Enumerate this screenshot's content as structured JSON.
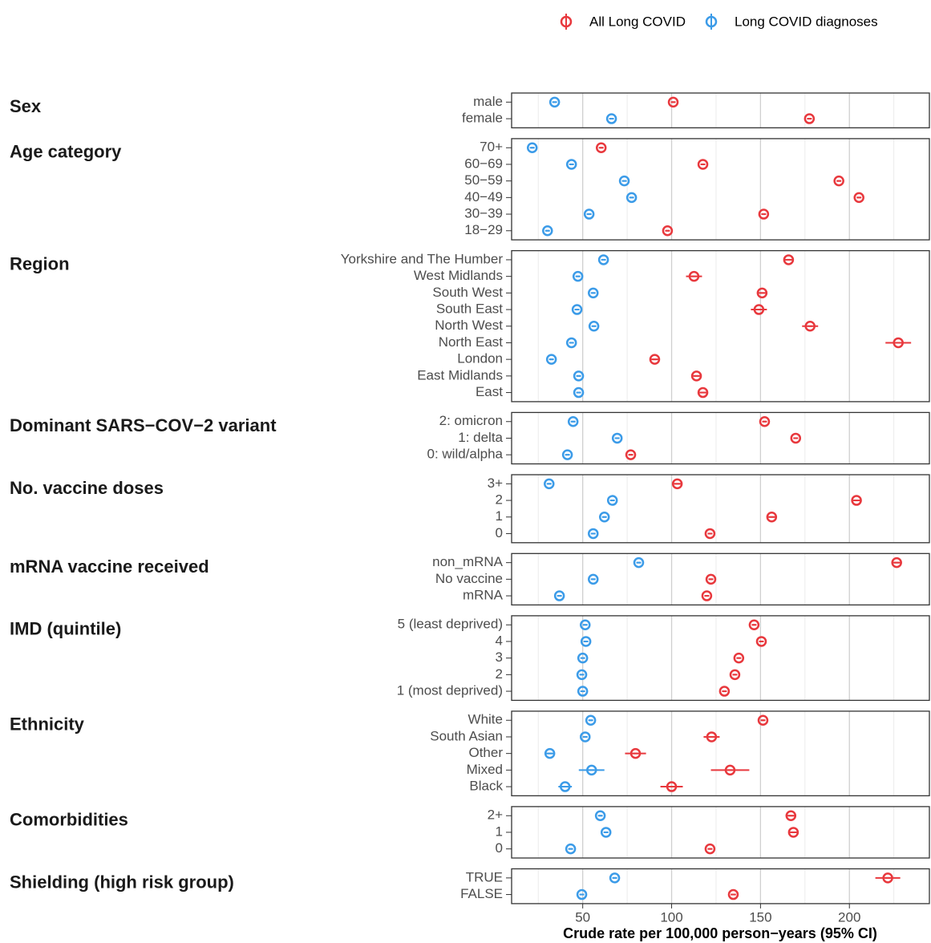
{
  "chart_data": {
    "type": "dotplot",
    "x_label": "Crude rate per 100,000 person−years (95% CI)",
    "xlim": [
      10,
      245
    ],
    "xticks": [
      50,
      100,
      150,
      200
    ],
    "minor_xticks": [
      25,
      75,
      125,
      175,
      225
    ],
    "grid": true,
    "legend_position": "top-right",
    "series": [
      {
        "name": "All Long COVID",
        "color": "#e8383d"
      },
      {
        "name": "Long COVID diagnoses",
        "color": "#3b9be8"
      }
    ],
    "panels": [
      {
        "title": "Sex",
        "categories": [
          "male",
          "female"
        ],
        "values": [
          [
            100.9,
            177.5
          ],
          [
            34.2,
            66.2
          ]
        ],
        "errors": [
          [
            1,
            1
          ],
          [
            1,
            1
          ]
        ]
      },
      {
        "title": "Age category",
        "categories": [
          "70+",
          "60−69",
          "50−59",
          "40−49",
          "30−39",
          "18−29"
        ],
        "values": [
          [
            60.4,
            117.6,
            194.1,
            205.4,
            151.8,
            97.7
          ],
          [
            21.6,
            43.7,
            73.4,
            77.5,
            53.6,
            30.2
          ]
        ],
        "errors": [
          [
            1,
            1,
            1,
            1,
            1,
            1
          ],
          [
            1,
            1,
            1,
            1,
            1,
            1
          ]
        ]
      },
      {
        "title": "Region",
        "categories": [
          "Yorkshire and The Humber",
          "West Midlands",
          "South West",
          "South East",
          "North West",
          "North East",
          "London",
          "East Midlands",
          "East"
        ],
        "values": [
          [
            165.8,
            112.6,
            150.9,
            149.1,
            177.9,
            227.5,
            90.5,
            114,
            117.6
          ],
          [
            61.7,
            47.3,
            55.9,
            46.8,
            56.3,
            43.7,
            32.4,
            47.7,
            47.7
          ]
        ],
        "errors": [
          [
            2,
            4.5,
            2,
            4.5,
            4.5,
            7.2,
            2,
            2,
            2
          ],
          [
            1,
            1,
            1,
            1,
            1,
            1,
            1,
            1,
            1
          ]
        ]
      },
      {
        "title": "Dominant SARS−COV−2 variant",
        "categories": [
          "2: omicron",
          "1: delta",
          "0: wild/alpha"
        ],
        "values": [
          [
            152.3,
            169.8,
            77
          ],
          [
            44.6,
            69.4,
            41.4
          ]
        ],
        "errors": [
          [
            1,
            1,
            1
          ],
          [
            1,
            1,
            1
          ]
        ]
      },
      {
        "title": "No. vaccine doses",
        "categories": [
          "3+",
          "2",
          "1",
          "0"
        ],
        "values": [
          [
            103.2,
            204,
            156.3,
            121.6
          ],
          [
            31.1,
            66.7,
            62.2,
            55.9
          ]
        ],
        "errors": [
          [
            2,
            2,
            2.5,
            1
          ],
          [
            1,
            1,
            1,
            1
          ]
        ]
      },
      {
        "title": "mRNA vaccine received",
        "categories": [
          "non_mRNA",
          "No vaccine",
          "mRNA"
        ],
        "values": [
          [
            226.6,
            122.1,
            119.8
          ],
          [
            81.5,
            55.9,
            36.9
          ]
        ],
        "errors": [
          [
            2,
            1,
            1
          ],
          [
            1,
            1,
            1
          ]
        ]
      },
      {
        "title": "IMD (quintile)",
        "categories": [
          "5 (least deprived)",
          "4",
          "3",
          "2",
          "1 (most deprived)"
        ],
        "values": [
          [
            146.4,
            150.5,
            137.8,
            135.6,
            129.7
          ],
          [
            51.4,
            51.8,
            50,
            49.5,
            50
          ]
        ],
        "errors": [
          [
            1,
            1,
            1,
            1,
            1
          ],
          [
            1,
            1,
            1,
            1,
            1
          ]
        ]
      },
      {
        "title": "Ethnicity",
        "categories": [
          "White",
          "South Asian",
          "Other",
          "Mixed",
          "Black"
        ],
        "values": [
          [
            151.4,
            122.5,
            79.7,
            132.9,
            100
          ],
          [
            54.5,
            51.4,
            31.5,
            55,
            40.1
          ]
        ],
        "errors": [
          [
            1,
            4.5,
            5.9,
            10.8,
            6.3
          ],
          [
            1,
            1,
            2,
            7.2,
            3.8
          ]
        ]
      },
      {
        "title": "Comorbidities",
        "categories": [
          "2+",
          "1",
          "0"
        ],
        "values": [
          [
            167.1,
            168.5,
            121.6
          ],
          [
            59.9,
            63.1,
            43.2
          ]
        ],
        "errors": [
          [
            2.5,
            2,
            1
          ],
          [
            1,
            1,
            1
          ]
        ]
      },
      {
        "title": "Shielding (high risk group)",
        "categories": [
          "TRUE",
          "FALSE"
        ],
        "values": [
          [
            221.6,
            134.7
          ],
          [
            68,
            49.5
          ]
        ],
        "errors": [
          [
            7,
            1.5
          ],
          [
            1,
            1
          ]
        ]
      }
    ]
  }
}
